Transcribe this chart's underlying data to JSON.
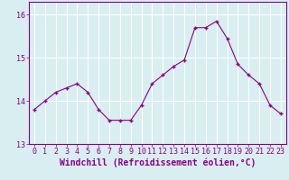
{
  "x": [
    0,
    1,
    2,
    3,
    4,
    5,
    6,
    7,
    8,
    9,
    10,
    11,
    12,
    13,
    14,
    15,
    16,
    17,
    18,
    19,
    20,
    21,
    22,
    23
  ],
  "y": [
    13.8,
    14.0,
    14.2,
    14.3,
    14.4,
    14.2,
    13.8,
    13.55,
    13.55,
    13.55,
    13.9,
    14.4,
    14.6,
    14.8,
    14.95,
    15.7,
    15.7,
    15.85,
    15.45,
    14.85,
    14.6,
    14.4,
    13.9,
    13.7
  ],
  "line_color": "#880088",
  "marker": "+",
  "marker_size": 3,
  "xlabel": "Windchill (Refroidissement éolien,°C)",
  "ylim": [
    13.0,
    16.3
  ],
  "xlim": [
    -0.5,
    23.5
  ],
  "yticks": [
    13,
    14,
    15,
    16
  ],
  "xticks": [
    0,
    1,
    2,
    3,
    4,
    5,
    6,
    7,
    8,
    9,
    10,
    11,
    12,
    13,
    14,
    15,
    16,
    17,
    18,
    19,
    20,
    21,
    22,
    23
  ],
  "bg_color": "#d8eef0",
  "grid_color": "#ffffff",
  "tick_label_fontsize": 6,
  "xlabel_fontsize": 7
}
